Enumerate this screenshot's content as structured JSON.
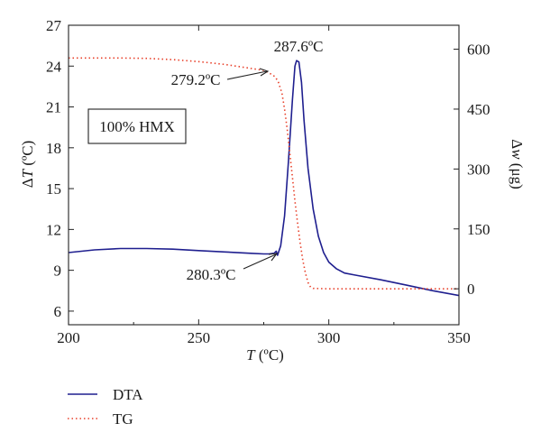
{
  "chart_data": {
    "type": "line",
    "title": "",
    "x": {
      "label_main": "T",
      "label_unit": " (ºC)",
      "ticks": [
        200,
        250,
        300,
        350
      ],
      "lim": [
        200,
        350
      ]
    },
    "y_left": {
      "label_prefix": "Δ",
      "label_main": "T",
      "label_unit": " (ºC)",
      "ticks": [
        6,
        9,
        12,
        15,
        18,
        21,
        24,
        27
      ],
      "lim": [
        5,
        27
      ]
    },
    "y_right": {
      "label_prefix": "Δ",
      "label_main": "w",
      "label_unit": " (μg)",
      "ticks": [
        0,
        150,
        300,
        450,
        600
      ],
      "lim": [
        -90,
        660
      ]
    },
    "series": [
      {
        "name": "DTA",
        "axis": "left",
        "color": "#1f1f8f",
        "style": "solid",
        "points": [
          [
            200,
            10.3
          ],
          [
            210,
            10.5
          ],
          [
            220,
            10.6
          ],
          [
            230,
            10.6
          ],
          [
            240,
            10.55
          ],
          [
            250,
            10.45
          ],
          [
            260,
            10.35
          ],
          [
            270,
            10.25
          ],
          [
            275,
            10.2
          ],
          [
            277,
            10.2
          ],
          [
            279,
            10.25
          ],
          [
            279.8,
            10.4
          ],
          [
            280.3,
            10.1
          ],
          [
            281.5,
            10.8
          ],
          [
            283,
            13.0
          ],
          [
            284.5,
            17.0
          ],
          [
            286,
            21.5
          ],
          [
            287,
            24.0
          ],
          [
            287.6,
            24.4
          ],
          [
            288.5,
            24.3
          ],
          [
            289.5,
            22.8
          ],
          [
            290.5,
            20.0
          ],
          [
            292,
            16.5
          ],
          [
            294,
            13.5
          ],
          [
            296,
            11.5
          ],
          [
            298,
            10.3
          ],
          [
            300,
            9.6
          ],
          [
            303,
            9.1
          ],
          [
            306,
            8.8
          ],
          [
            310,
            8.65
          ],
          [
            320,
            8.3
          ],
          [
            330,
            7.9
          ],
          [
            340,
            7.5
          ],
          [
            350,
            7.15
          ]
        ]
      },
      {
        "name": "TG",
        "axis": "right",
        "color": "#e8402a",
        "style": "dotted",
        "points": [
          [
            200,
            578
          ],
          [
            220,
            578
          ],
          [
            230,
            577
          ],
          [
            240,
            574
          ],
          [
            250,
            569
          ],
          [
            260,
            562
          ],
          [
            268,
            554
          ],
          [
            272,
            550
          ],
          [
            275,
            547
          ],
          [
            277,
            541
          ],
          [
            279.2,
            532
          ],
          [
            280.5,
            520
          ],
          [
            282,
            490
          ],
          [
            283,
            450
          ],
          [
            284,
            400
          ],
          [
            285,
            340
          ],
          [
            286,
            280
          ],
          [
            287,
            220
          ],
          [
            288,
            165
          ],
          [
            289,
            115
          ],
          [
            290,
            72
          ],
          [
            291,
            40
          ],
          [
            292,
            16
          ],
          [
            293,
            4
          ],
          [
            294,
            1
          ],
          [
            300,
            0
          ],
          [
            320,
            0
          ],
          [
            340,
            0
          ],
          [
            350,
            0
          ]
        ]
      }
    ],
    "annotations": [
      {
        "text": "287.6ºC",
        "series": "DTA",
        "x": 287.6,
        "y": 24.4
      },
      {
        "text": "279.2ºC",
        "series": "TG",
        "x": 279.2,
        "y": 532
      },
      {
        "text": "280.3ºC",
        "series": "DTA",
        "x": 280.3,
        "y": 10.1
      }
    ],
    "inset_label": "100% HMX",
    "legend": {
      "placement": "bottom-left",
      "entries": [
        "DTA",
        "TG"
      ]
    }
  }
}
